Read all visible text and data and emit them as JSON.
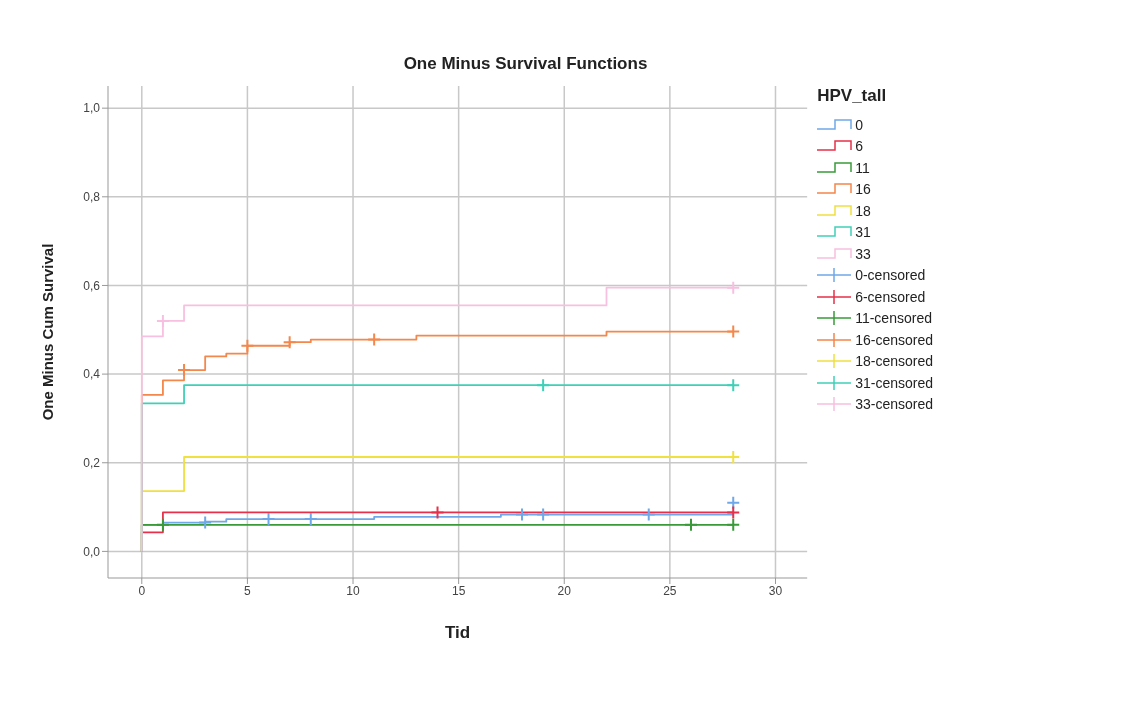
{
  "chart_data": {
    "type": "step",
    "title": "One Minus Survival Functions",
    "xlabel": "Tid",
    "ylabel": "One Minus Cum Survival",
    "legend_title": "HPV_tall",
    "legend": "right",
    "grid": true,
    "xlim": [
      -1.6,
      31.5
    ],
    "xticks": [
      0,
      5,
      10,
      15,
      20,
      25,
      30
    ],
    "ylim": [
      -0.06,
      1.05
    ],
    "yticks": [
      {
        "value": 0,
        "label": "0,0"
      },
      {
        "value": 0.2,
        "label": "0,2"
      },
      {
        "value": 0.4,
        "label": "0,4"
      },
      {
        "value": 0.6,
        "label": "0,6"
      },
      {
        "value": 0.8,
        "label": "0,8"
      },
      {
        "value": 1,
        "label": "1,0"
      }
    ],
    "series": [
      {
        "name": "0",
        "color": "#6fa8e8",
        "x": [
          0,
          0,
          1,
          3,
          4,
          11,
          17,
          28
        ],
        "values": [
          0,
          0.06,
          0.065,
          0.067,
          0.073,
          0.078,
          0.083,
          0.083
        ]
      },
      {
        "name": "6",
        "color": "#e8304a",
        "x": [
          0,
          0,
          1,
          28
        ],
        "values": [
          0,
          0.043,
          0.088,
          0.088
        ]
      },
      {
        "name": "11",
        "color": "#3a9a3a",
        "x": [
          0,
          0,
          28
        ],
        "values": [
          0,
          0.06,
          0.06
        ]
      },
      {
        "name": "16",
        "color": "#f4874b",
        "x": [
          0,
          0,
          1,
          2,
          3,
          4,
          5,
          7,
          8,
          13,
          22,
          28
        ],
        "values": [
          0,
          0.353,
          0.386,
          0.409,
          0.44,
          0.446,
          0.464,
          0.472,
          0.478,
          0.487,
          0.496,
          0.496
        ]
      },
      {
        "name": "18",
        "color": "#f0e040",
        "x": [
          0,
          0,
          2,
          28
        ],
        "values": [
          0,
          0.136,
          0.213,
          0.213
        ]
      },
      {
        "name": "31",
        "color": "#40d0b8",
        "x": [
          0,
          0,
          2,
          28
        ],
        "values": [
          0,
          0.334,
          0.375,
          0.375
        ]
      },
      {
        "name": "33",
        "color": "#f8c0e0",
        "x": [
          0,
          0,
          1,
          2,
          22,
          28
        ],
        "values": [
          0,
          0.485,
          0.52,
          0.555,
          0.595,
          0.595
        ]
      },
      {
        "name": "0-censored",
        "type": "scatter",
        "marker": "cross",
        "color": "#6fa8e8",
        "x": [
          3,
          6,
          8,
          18,
          19,
          24,
          28
        ],
        "values": [
          0.065,
          0.073,
          0.073,
          0.083,
          0.083,
          0.083,
          0.11
        ]
      },
      {
        "name": "6-censored",
        "type": "scatter",
        "marker": "cross",
        "color": "#e8304a",
        "x": [
          14,
          28
        ],
        "values": [
          0.088,
          0.088
        ]
      },
      {
        "name": "11-censored",
        "type": "scatter",
        "marker": "cross",
        "color": "#3a9a3a",
        "x": [
          1,
          26,
          28
        ],
        "values": [
          0.06,
          0.06,
          0.06
        ]
      },
      {
        "name": "16-censored",
        "type": "scatter",
        "marker": "cross",
        "color": "#f4874b",
        "x": [
          2,
          5,
          7,
          11,
          28
        ],
        "values": [
          0.409,
          0.464,
          0.472,
          0.478,
          0.496
        ]
      },
      {
        "name": "18-censored",
        "type": "scatter",
        "marker": "cross",
        "color": "#f0e040",
        "x": [
          28
        ],
        "values": [
          0.213
        ]
      },
      {
        "name": "31-censored",
        "type": "scatter",
        "marker": "cross",
        "color": "#40d0b8",
        "x": [
          19,
          28
        ],
        "values": [
          0.375,
          0.375
        ]
      },
      {
        "name": "33-censored",
        "type": "scatter",
        "marker": "cross",
        "color": "#f8c0e0",
        "x": [
          1,
          28
        ],
        "values": [
          0.52,
          0.595
        ]
      }
    ]
  }
}
